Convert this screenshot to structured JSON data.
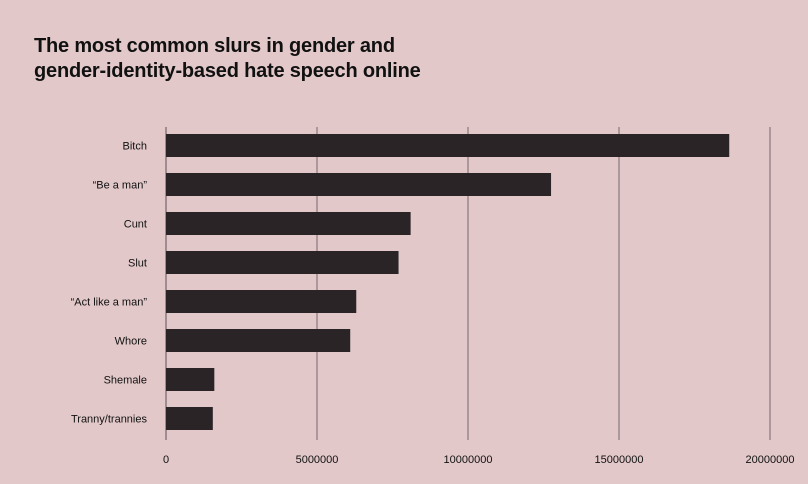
{
  "chart_data": {
    "type": "bar",
    "orientation": "horizontal",
    "title": "The most common slurs in gender and gender-identity-based hate speech online",
    "title_lines": [
      "The most common slurs in gender and",
      "gender-identity-based hate speech online"
    ],
    "xlabel": "",
    "ylabel": "",
    "categories": [
      "Bitch",
      "“Be a man”",
      "Cunt",
      "Slut",
      "“Act like a man”",
      "Whore",
      "Shemale",
      "Tranny/trannies"
    ],
    "values": [
      18650000,
      12750000,
      8100000,
      7700000,
      6300000,
      6100000,
      1600000,
      1550000
    ],
    "xlim": [
      0,
      20000000
    ],
    "x_ticks": [
      0,
      5000000,
      10000000,
      15000000,
      20000000
    ],
    "x_tick_labels": [
      "0",
      "5000000",
      "10000000",
      "15000000",
      "20000000"
    ],
    "grid": "vertical",
    "legend": "none",
    "colors": {
      "background": "#e2c8c9",
      "bar": "#2a2427",
      "grid": "#5a5055",
      "text": "#111111"
    }
  }
}
